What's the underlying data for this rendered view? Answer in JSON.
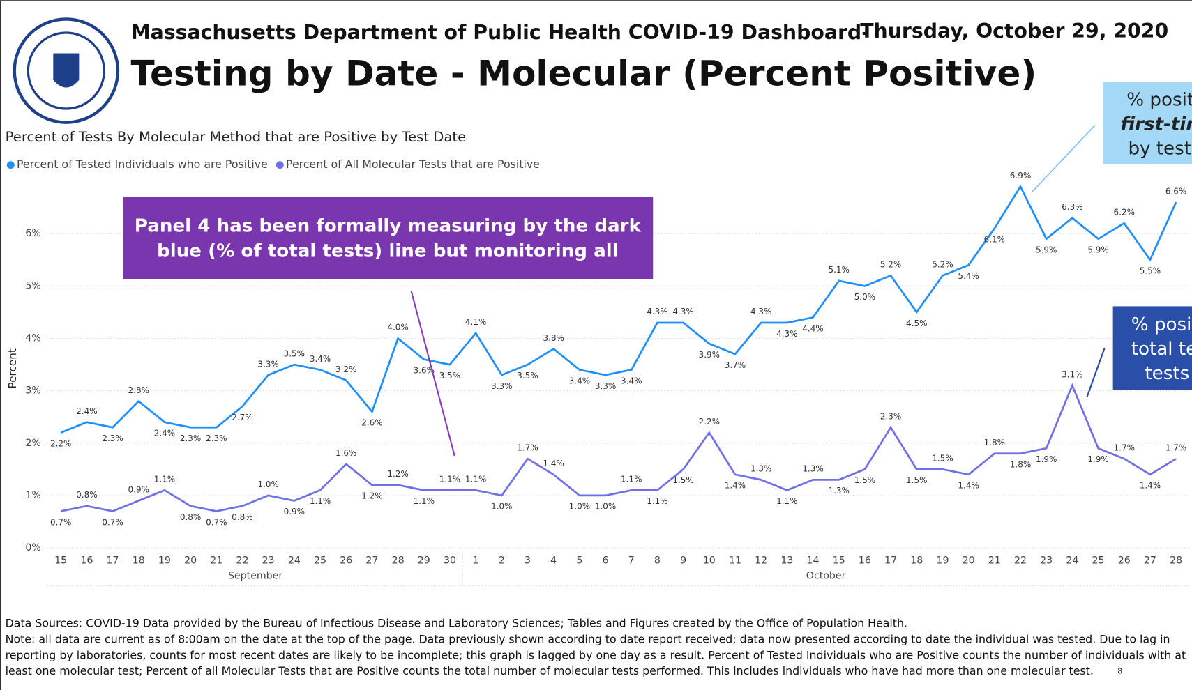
{
  "header": {
    "agency": "Massachusetts Department of Public Health COVID-19 Dashboard-",
    "date": "Thursday, October 29, 2020",
    "title": "Testing by Date - Molecular (Percent Positive)"
  },
  "chart_data": {
    "type": "line",
    "title": "Percent of Tests By Molecular Method that are Positive by Test Date",
    "y_label": "Percent",
    "categories": [
      "15",
      "16",
      "17",
      "18",
      "19",
      "20",
      "21",
      "22",
      "23",
      "24",
      "25",
      "26",
      "27",
      "28",
      "29",
      "30",
      "1",
      "2",
      "3",
      "4",
      "5",
      "6",
      "7",
      "8",
      "9",
      "10",
      "11",
      "12",
      "13",
      "14",
      "15",
      "16",
      "17",
      "18",
      "19",
      "20",
      "21",
      "22",
      "23",
      "24",
      "25",
      "26",
      "27",
      "28"
    ],
    "month_labels": [
      "September",
      "October"
    ],
    "series": [
      {
        "name": "Percent of Tested Individuals who are Positive",
        "color": "#1f8fff",
        "values": [
          2.2,
          2.4,
          2.3,
          2.8,
          2.4,
          2.3,
          2.3,
          2.7,
          3.3,
          3.5,
          3.4,
          3.2,
          2.6,
          4.0,
          3.6,
          3.5,
          4.1,
          3.3,
          3.5,
          3.8,
          3.4,
          3.3,
          3.4,
          4.3,
          4.3,
          3.9,
          3.7,
          4.3,
          4.3,
          4.4,
          5.1,
          5.0,
          5.2,
          4.5,
          5.2,
          5.4,
          6.1,
          6.9,
          5.9,
          6.3,
          5.9,
          6.2,
          5.5,
          6.6
        ],
        "value_labels": [
          "2.2%",
          "2.4%",
          "2.3%",
          "2.8%",
          "2.4%",
          "2.3%",
          "2.3%",
          "2.7%",
          "3.3%",
          "3.5%",
          "3.4%",
          "3.2%",
          "2.6%",
          "4.0%",
          "3.6%",
          "3.5%",
          "4.1%",
          "3.3%",
          "3.5%",
          "3.8%",
          "3.4%",
          "3.3%",
          "3.4%",
          "4.3%",
          "4.3%",
          "3.9%",
          "3.7%",
          "4.3%",
          "4.3%",
          "4.4%",
          "5.1%",
          "5.0%",
          "5.2%",
          "4.5%",
          "5.2%",
          "5.4%",
          "6.1%",
          "6.9%",
          "5.9%",
          "6.3%",
          "5.9%",
          "6.2%",
          "5.5%",
          "6.6%"
        ]
      },
      {
        "name": "Percent of All Molecular Tests that are Positive",
        "color": "#6f6fe6",
        "values": [
          0.7,
          0.8,
          0.7,
          0.9,
          1.1,
          0.8,
          0.7,
          0.8,
          1.0,
          0.9,
          1.1,
          1.6,
          1.2,
          1.2,
          1.1,
          1.1,
          1.1,
          1.0,
          1.7,
          1.4,
          1.0,
          1.0,
          1.1,
          1.1,
          1.5,
          2.2,
          1.4,
          1.3,
          1.1,
          1.3,
          1.3,
          1.5,
          2.3,
          1.5,
          1.5,
          1.4,
          1.8,
          1.8,
          1.9,
          3.1,
          1.9,
          1.7,
          1.4,
          1.7
        ],
        "value_labels": [
          "0.7%",
          "0.8%",
          "0.7%",
          "0.9%",
          "1.1%",
          "0.8%",
          "0.7%",
          "0.8%",
          "1.0%",
          "0.9%",
          "1.1%",
          "1.6%",
          "1.2%",
          "1.2%",
          "1.1%",
          "1.1%",
          "1.1%",
          "1.0%",
          "1.7%",
          "1.4%",
          "1.0%",
          "1.0%",
          "1.1%",
          "1.1%",
          "1.5%",
          "2.2%",
          "1.4%",
          "1.3%",
          "1.1%",
          "1.3%",
          "1.3%",
          "1.5%",
          "2.3%",
          "1.5%",
          "1.5%",
          "1.4%",
          "1.8%",
          "1.8%",
          "1.9%",
          "3.1%",
          "1.9%",
          "1.7%",
          "1.4%",
          "1.7%"
        ]
      }
    ],
    "ylim": [
      0,
      7
    ],
    "yticks": [
      {
        "value": 0,
        "label": "0%"
      },
      {
        "value": 1,
        "label": "1%"
      },
      {
        "value": 2,
        "label": "2%"
      },
      {
        "value": 3,
        "label": "3%"
      },
      {
        "value": 4,
        "label": "4%"
      },
      {
        "value": 5,
        "label": "5%"
      },
      {
        "value": 6,
        "label": "6%"
      }
    ],
    "grid": true,
    "annotations": {
      "panel": [
        "Panel 4 has been formally measuring by the dark",
        "blue (% of total tests) line but monitoring all"
      ],
      "individuals": [
        "% posit",
        "first-tim",
        "by test"
      ],
      "total": [
        "% posi",
        "total te",
        "tests"
      ]
    }
  },
  "footer": [
    "Data Sources: COVID-19 Data provided by the Bureau of Infectious Disease and Laboratory Sciences; Tables and Figures created by the Office of Population Health.",
    "Note: all data are current as of 8:00am on the date at the top of the page. Data previously shown according to date report received; data now presented according to date the individual was tested. Due to lag in",
    "reporting by laboratories, counts for most recent dates are likely to be incomplete; this graph is lagged by one day as a result. Percent of Tested Individuals who are Positive counts the number of individuals with at",
    "least one molecular test; Percent of all Molecular Tests that are Positive counts the total number of molecular tests performed. This includes individuals who have had more than one molecular test."
  ],
  "page_number": "8"
}
